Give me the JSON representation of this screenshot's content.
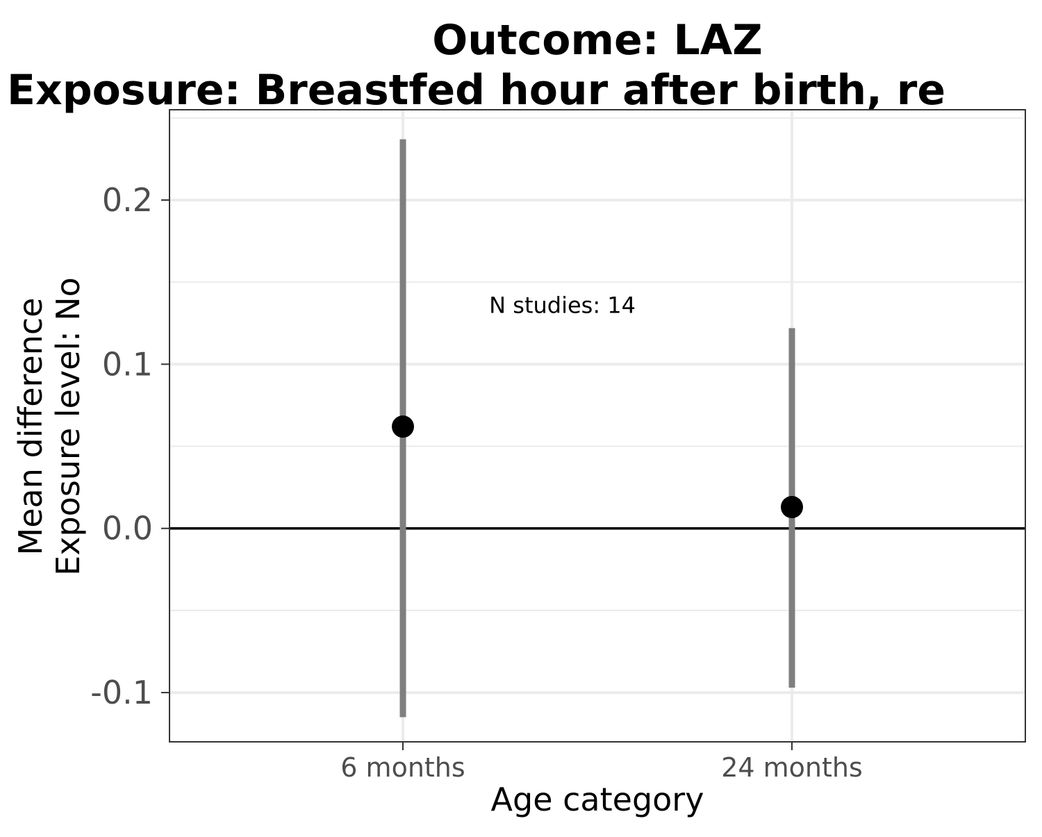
{
  "chart_data": {
    "type": "scatter",
    "title": "Outcome: LAZ",
    "subtitle": "Exposure: Breastfed hour after birth, re",
    "xlabel": "Age category",
    "ylabel_lines": [
      "Mean difference",
      "Exposure level: No"
    ],
    "categories": [
      "6 months",
      "24 months"
    ],
    "points": [
      {
        "category": "6 months",
        "estimate": 0.062,
        "ci_lower": -0.115,
        "ci_upper": 0.237
      },
      {
        "category": "24 months",
        "estimate": 0.013,
        "ci_lower": -0.097,
        "ci_upper": 0.122
      }
    ],
    "annotation": "N studies: 14",
    "annotation_at": {
      "category_position": 1.41,
      "y": 0.136
    },
    "reference_line_y": 0,
    "ylim": [
      -0.13,
      0.255
    ],
    "yticks": [
      -0.1,
      0.0,
      0.1,
      0.2
    ],
    "ytick_labels": [
      "-0.1",
      "0.0",
      "0.1",
      "0.2"
    ],
    "grid": true,
    "colors": {
      "point": "#000000",
      "errorbar": "#7f7f7f",
      "grid": "#ebebeb",
      "axis_text": "#4d4d4d",
      "panel_border": "#333333",
      "reference_line": "#000000"
    }
  }
}
